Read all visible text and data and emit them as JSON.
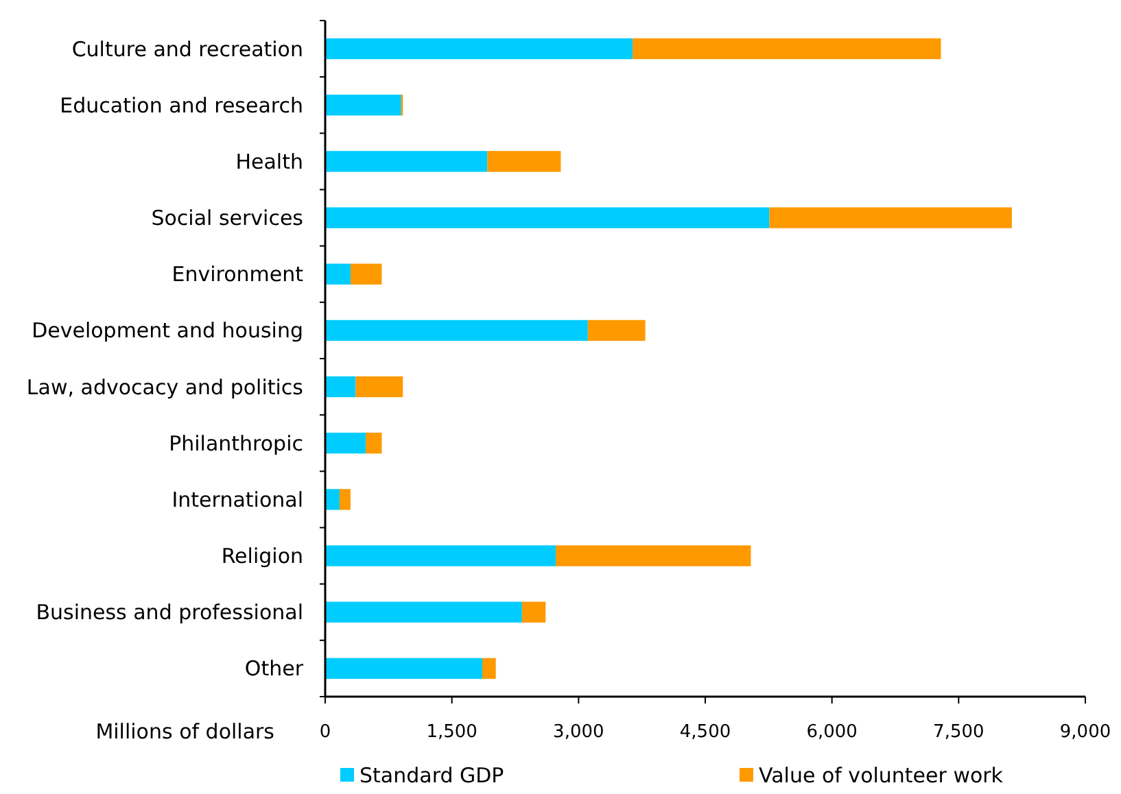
{
  "chart_data": {
    "type": "bar",
    "orientation": "horizontal",
    "stacked": true,
    "categories": [
      "Culture and recreation",
      "Education and research",
      "Health",
      "Social services",
      "Environment",
      "Development and housing",
      "Law, advocacy and politics",
      "Philanthropic",
      "International",
      "Religion",
      "Business and professional",
      "Other"
    ],
    "series": [
      {
        "name": "Standard GDP",
        "color": "#00ccff",
        "values": [
          3640,
          900,
          1920,
          5260,
          300,
          3110,
          360,
          480,
          170,
          2730,
          2330,
          1860
        ]
      },
      {
        "name": "Value of volunteer work",
        "color": "#ff9900",
        "values": [
          3650,
          20,
          870,
          2870,
          370,
          680,
          560,
          190,
          130,
          2310,
          280,
          160
        ]
      }
    ],
    "xlabel": "Millions of dollars",
    "xlim": [
      0,
      9000
    ],
    "xticks": [
      0,
      {
        "value": 1500,
        "label": "1,500"
      },
      {
        "value": 3000,
        "label": "3,000"
      },
      {
        "value": 4500,
        "label": "4,500"
      },
      {
        "value": 6000,
        "label": "6,000"
      },
      {
        "value": 7500,
        "label": "7,500"
      },
      {
        "value": 9000,
        "label": "9,000"
      }
    ],
    "grid": false,
    "legend": "bottom"
  }
}
